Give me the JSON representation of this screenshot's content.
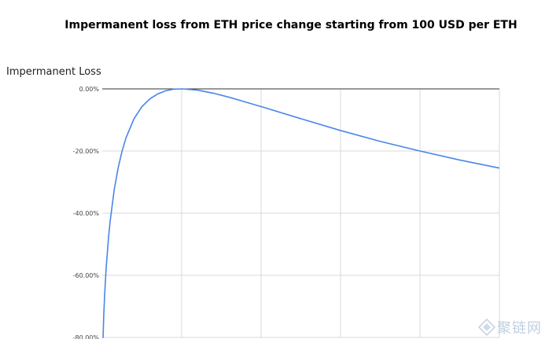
{
  "chart_data": {
    "type": "line",
    "title": "Impermanent loss from ETH price change starting from 100 USD per ETH",
    "ylabel": "Impermanent Loss",
    "xlabel": "",
    "y_tick_labels": [
      "0.00%",
      "-20.00%",
      "-40.00%",
      "-60.00%",
      "-80.00%"
    ],
    "y_ticks": [
      0,
      -20,
      -40,
      -60,
      -80
    ],
    "ylim": [
      -80,
      0
    ],
    "xlim": [
      0,
      500
    ],
    "x_grid": [
      100,
      200,
      300,
      400,
      500
    ],
    "series": [
      {
        "color": "#4a86e8",
        "x": [
          1,
          2,
          3,
          5,
          8,
          10,
          15,
          20,
          25,
          30,
          40,
          50,
          60,
          70,
          80,
          90,
          100,
          120,
          140,
          160,
          180,
          200,
          250,
          300,
          350,
          400,
          450,
          500
        ],
        "y": [
          -80.2,
          -72.3,
          -66.4,
          -57.4,
          -47.6,
          -42.5,
          -32.6,
          -25.5,
          -20.0,
          -15.7,
          -9.6,
          -5.7,
          -3.2,
          -1.6,
          -0.6,
          -0.1,
          0.0,
          -0.4,
          -1.4,
          -2.7,
          -4.2,
          -5.7,
          -9.6,
          -13.4,
          -16.9,
          -20.0,
          -22.9,
          -25.5
        ]
      }
    ],
    "grid": true,
    "legend": "none"
  },
  "watermark": {
    "text": "聚链网",
    "icon": "network-logo-icon"
  }
}
